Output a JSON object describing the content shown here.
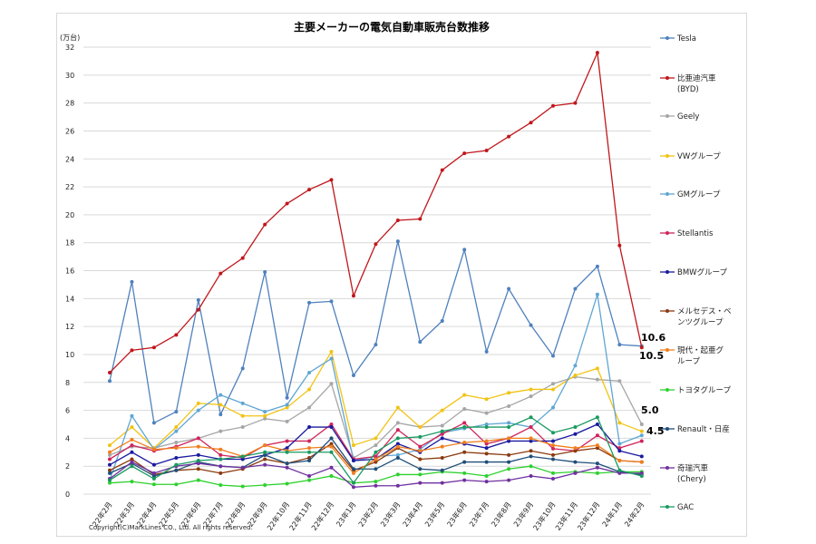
{
  "chart_data": {
    "type": "line",
    "title": "主要メーカーの電気自動車販売台数推移",
    "ylabel": "(万台)",
    "xlabel": "",
    "ylim": [
      0,
      32
    ],
    "yticks": [
      0,
      2,
      4,
      6,
      8,
      10,
      12,
      14,
      16,
      18,
      20,
      22,
      24,
      26,
      28,
      30,
      32
    ],
    "grid": true,
    "legend_position": "right",
    "categories": [
      "22年2月",
      "22年3月",
      "22年4月",
      "22年5月",
      "22年6月",
      "22年7月",
      "22年8月",
      "22年9月",
      "22年10月",
      "22年11月",
      "22年12月",
      "23年1月",
      "23年2月",
      "23年3月",
      "23年4月",
      "23年5月",
      "23年6月",
      "23年7月",
      "23年8月",
      "23年9月",
      "23年10月",
      "23年11月",
      "23年12月",
      "24年1月",
      "24年2月"
    ],
    "series": [
      {
        "name": "Tesla",
        "color": "#4f81bd",
        "values": [
          8.1,
          15.2,
          5.1,
          5.9,
          13.9,
          5.7,
          9.0,
          15.9,
          6.9,
          13.7,
          13.8,
          8.5,
          10.7,
          18.1,
          10.9,
          12.4,
          17.5,
          10.2,
          14.7,
          12.1,
          9.9,
          14.7,
          16.3,
          10.7,
          10.6
        ]
      },
      {
        "name": "比亜迪汽車\n(BYD)",
        "color": "#c0171c",
        "values": [
          8.7,
          10.3,
          10.5,
          11.4,
          13.2,
          15.8,
          16.9,
          19.3,
          20.8,
          21.8,
          22.5,
          14.2,
          17.9,
          19.6,
          19.7,
          23.2,
          24.4,
          24.6,
          25.6,
          26.6,
          27.8,
          28.0,
          31.6,
          17.8,
          10.5
        ]
      },
      {
        "name": "Geely",
        "color": "#a6a6a6",
        "values": [
          2.8,
          3.4,
          3.3,
          3.7,
          4.0,
          4.5,
          4.8,
          5.4,
          5.2,
          6.2,
          7.9,
          2.6,
          3.5,
          5.1,
          4.8,
          4.9,
          6.1,
          5.8,
          6.3,
          7.0,
          7.9,
          8.4,
          8.2,
          8.1,
          5.0
        ]
      },
      {
        "name": "VWグループ",
        "color": "#f2c314",
        "values": [
          3.5,
          4.8,
          3.3,
          4.8,
          6.5,
          6.4,
          5.6,
          5.6,
          6.2,
          7.5,
          10.2,
          3.5,
          4.0,
          6.2,
          4.8,
          6.0,
          7.1,
          6.8,
          7.25,
          7.5,
          7.5,
          8.5,
          9.0,
          5.1,
          4.5
        ]
      },
      {
        "name": "GMグループ",
        "color": "#5fa6d4",
        "values": [
          1.0,
          5.6,
          3.2,
          4.5,
          6.0,
          7.1,
          6.5,
          5.9,
          6.4,
          8.7,
          9.7,
          2.4,
          2.7,
          2.8,
          3.2,
          4.4,
          4.7,
          5.0,
          5.1,
          4.8,
          6.2,
          9.2,
          14.3,
          3.6,
          4.2
        ]
      },
      {
        "name": "Stellantis",
        "color": "#d0245a",
        "values": [
          2.5,
          3.5,
          3.1,
          3.4,
          4.0,
          2.8,
          2.6,
          3.5,
          3.8,
          3.8,
          5.0,
          2.5,
          2.7,
          4.6,
          3.4,
          4.3,
          5.1,
          3.6,
          4.0,
          4.8,
          3.25,
          3.1,
          4.2,
          3.3,
          3.8
        ]
      },
      {
        "name": "BMWグループ",
        "color": "#1a1aa0",
        "values": [
          2.1,
          3.0,
          2.1,
          2.6,
          2.8,
          2.5,
          2.5,
          2.8,
          3.3,
          4.8,
          4.8,
          2.4,
          2.5,
          3.6,
          3.0,
          4.0,
          3.6,
          3.3,
          3.8,
          3.8,
          3.8,
          4.3,
          5.0,
          3.1,
          2.7
        ]
      },
      {
        "name": "メルセデス・ベ\nンツグループ",
        "color": "#8b3a0f",
        "values": [
          1.7,
          2.5,
          1.4,
          1.7,
          1.8,
          1.5,
          1.8,
          2.5,
          2.2,
          2.6,
          3.6,
          1.7,
          2.3,
          3.3,
          2.5,
          2.6,
          3.0,
          2.9,
          2.8,
          3.1,
          2.8,
          3.1,
          3.3,
          2.4,
          2.3
        ]
      },
      {
        "name": "現代・起亜グ\nループ",
        "color": "#f07f1e",
        "values": [
          3.0,
          3.9,
          3.2,
          3.3,
          3.4,
          3.2,
          2.7,
          3.5,
          3.1,
          3.3,
          3.4,
          1.5,
          2.5,
          3.4,
          3.1,
          3.4,
          3.7,
          3.8,
          4.0,
          4.0,
          3.5,
          3.3,
          3.5,
          2.4,
          2.3
        ]
      },
      {
        "name": "トヨタグループ",
        "color": "#2ed12e",
        "values": [
          0.8,
          0.9,
          0.7,
          0.7,
          1.0,
          0.65,
          0.55,
          0.65,
          0.75,
          1.0,
          1.3,
          0.8,
          0.9,
          1.4,
          1.4,
          1.6,
          1.5,
          1.3,
          1.8,
          2.0,
          1.5,
          1.6,
          1.5,
          1.6,
          1.6
        ]
      },
      {
        "name": "Renault・日産",
        "color": "#1f4e79",
        "values": [
          1.5,
          2.2,
          1.3,
          1.7,
          2.3,
          2.0,
          1.9,
          2.8,
          2.2,
          2.4,
          4.0,
          1.8,
          1.8,
          2.6,
          1.8,
          1.7,
          2.3,
          2.3,
          2.3,
          2.7,
          2.5,
          2.3,
          2.2,
          1.6,
          1.4
        ]
      },
      {
        "name": "奇瑞汽車\n(Chery)",
        "color": "#7030a0",
        "values": [
          1.1,
          2.3,
          1.5,
          2.0,
          2.2,
          2.0,
          1.9,
          2.1,
          1.9,
          1.3,
          1.9,
          0.5,
          0.6,
          0.6,
          0.8,
          0.8,
          1.0,
          0.9,
          1.0,
          1.3,
          1.1,
          1.5,
          1.9,
          1.5,
          1.5
        ]
      },
      {
        "name": "GAC",
        "color": "#1a9a60",
        "values": [
          1.0,
          2.0,
          1.1,
          2.1,
          2.4,
          2.5,
          2.7,
          3.0,
          3.0,
          3.0,
          3.0,
          0.8,
          3.0,
          4.0,
          4.1,
          4.5,
          4.8,
          4.8,
          4.8,
          5.5,
          4.4,
          4.8,
          5.5,
          1.7,
          1.3
        ]
      }
    ],
    "annotations": [
      "10.6",
      "10.5",
      "5.0",
      "4.5"
    ],
    "footer": "Copyright(C)MarkLines CO., Ltd. All rights reserved."
  }
}
